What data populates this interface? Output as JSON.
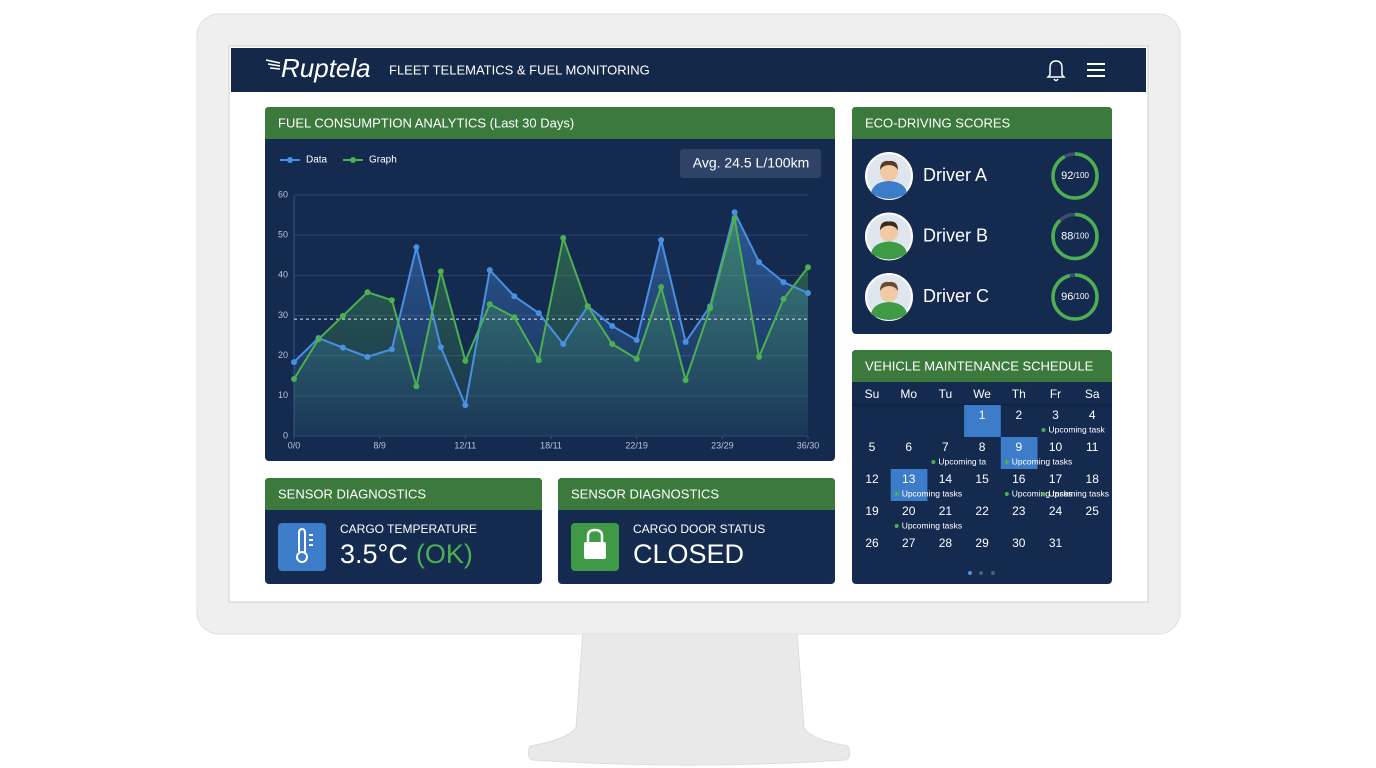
{
  "header": {
    "logo": "Ruptela",
    "title": "FLEET TELEMATICS & FUEL MONITORING"
  },
  "chart_data": {
    "type": "line",
    "title": "FUEL CONSUMPTION ANALYTICS (Last 30 Days)",
    "badge": "Avg. 24.5 L/100km",
    "x": [
      0,
      1,
      2,
      3,
      4,
      5,
      6,
      7,
      8,
      9,
      10,
      11,
      12,
      13,
      14,
      15,
      16,
      17,
      18,
      19,
      20,
      21
    ],
    "xlim": [
      0,
      21
    ],
    "xticks": [
      {
        "value": 0,
        "label": "0/0"
      },
      {
        "value": 3.5,
        "label": "8/9"
      },
      {
        "value": 7,
        "label": "12/11"
      },
      {
        "value": 10.5,
        "label": "18/11"
      },
      {
        "value": 14,
        "label": "22/19"
      },
      {
        "value": 17.5,
        "label": "23/29"
      },
      {
        "value": 21,
        "label": "36/30"
      }
    ],
    "ylim": [
      0,
      60
    ],
    "yticks": [
      0,
      10,
      20,
      30,
      40,
      50,
      60
    ],
    "grid": true,
    "legend": "top-left",
    "reference_line": 29.1,
    "series": [
      {
        "name": "Data",
        "color": "#4a90e2",
        "values": [
          18.4,
          24.4,
          22,
          19.7,
          21.6,
          47,
          22.1,
          7.7,
          41.3,
          34.8,
          30.6,
          22.9,
          32.3,
          27.4,
          23.9,
          48.8,
          23.4,
          32.3,
          55.7,
          43.3,
          38.3,
          35.6
        ]
      },
      {
        "name": "Graph",
        "color": "#4caf50",
        "values": [
          14.2,
          24.1,
          29.9,
          35.8,
          33.8,
          12.4,
          41,
          18.7,
          32.8,
          29.6,
          18.9,
          49.3,
          32.3,
          22.9,
          19.2,
          37.1,
          13.9,
          31.8,
          54.2,
          19.7,
          34.1,
          42
        ]
      }
    ]
  },
  "eco_driving": {
    "title": "ECO-DRIVING SCORES",
    "drivers": [
      {
        "name": "Driver A",
        "score": 92,
        "max": 100,
        "max_label": "/100"
      },
      {
        "name": "Driver B",
        "score": 88,
        "max": 100,
        "max_label": "/100"
      },
      {
        "name": "Driver C",
        "score": 96,
        "max": 100,
        "max_label": "/100"
      }
    ]
  },
  "maintenance": {
    "title": "VEHICLE MAINTENANCE SCHEDULE",
    "weekdays": [
      "Su",
      "Mo",
      "Tu",
      "We",
      "Th",
      "Fr",
      "Sa"
    ],
    "weeks": [
      [
        null,
        null,
        null,
        {
          "day": 1,
          "highlight": true
        },
        {
          "day": 2
        },
        {
          "day": 3,
          "task": "Upcoming task"
        },
        {
          "day": 4
        }
      ],
      [
        {
          "day": 5
        },
        {
          "day": 6
        },
        {
          "day": 7,
          "task": "Upcoming ta"
        },
        {
          "day": 8
        },
        {
          "day": 9,
          "highlight": true,
          "task": "Upcoming tasks"
        },
        {
          "day": 10
        },
        {
          "day": 11
        }
      ],
      [
        {
          "day": 12
        },
        {
          "day": 13,
          "highlight": true,
          "task": "Upcoming tasks"
        },
        {
          "day": 14
        },
        {
          "day": 15
        },
        {
          "day": 16,
          "task": "Upcoming tasks"
        },
        {
          "day": 17,
          "task": "Upcoming tasks"
        },
        {
          "day": 18
        }
      ],
      [
        {
          "day": 19
        },
        {
          "day": 20,
          "task": "Upcoming tasks"
        },
        {
          "day": 21
        },
        {
          "day": 22
        },
        {
          "day": 23
        },
        {
          "day": 24
        },
        {
          "day": 25
        }
      ],
      [
        {
          "day": 26
        },
        {
          "day": 27
        },
        {
          "day": 28
        },
        {
          "day": 29
        },
        {
          "day": 30
        },
        {
          "day": 31
        },
        null
      ]
    ]
  },
  "sensors": [
    {
      "title": "SENSOR DIAGNOSTICS",
      "label": "CARGO TEMPERATURE",
      "value": "3.5°C",
      "status": "(OK)"
    },
    {
      "title": "SENSOR DIAGNOSTICS",
      "label": "CARGO DOOR STATUS",
      "value": "CLOSED"
    }
  ]
}
